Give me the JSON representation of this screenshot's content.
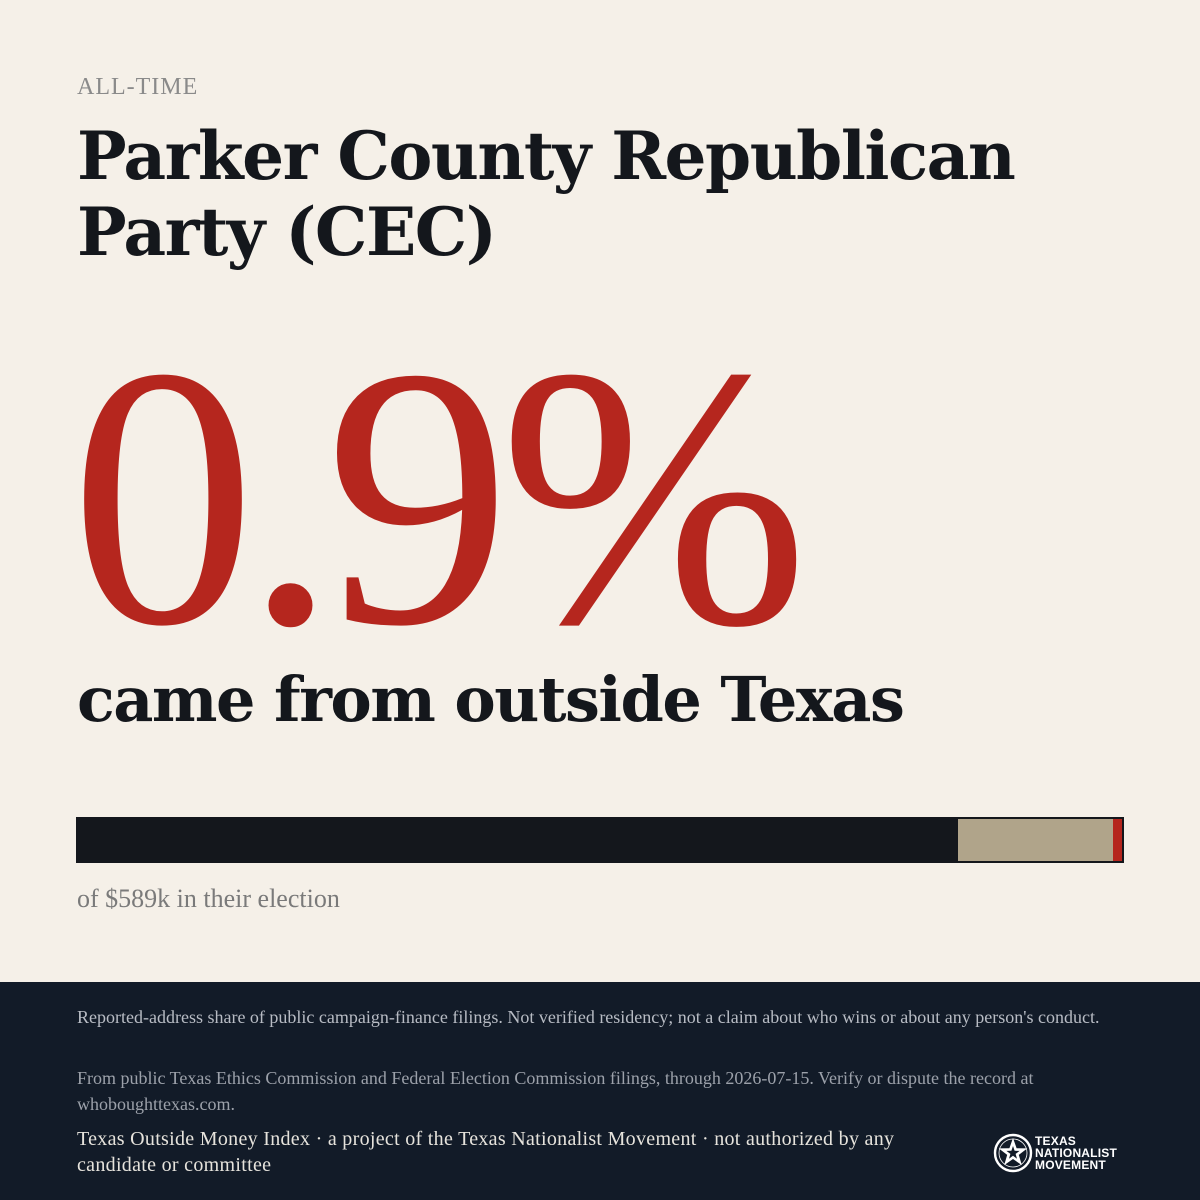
{
  "header": {
    "eyebrow": "ALL-TIME",
    "title": "Parker County Republican Party (CEC)"
  },
  "stat": {
    "percent": "0.9%",
    "subtitle": "came from outside Texas"
  },
  "bar": {
    "segments": [
      {
        "name": "seg-in-state",
        "fraction": 0.843,
        "color": "#14171c"
      },
      {
        "name": "seg-other",
        "fraction": 0.148,
        "color": "#b0a48a"
      },
      {
        "name": "seg-outside",
        "fraction": 0.009,
        "color": "#b5261e"
      }
    ],
    "caption": "of $589k in their election"
  },
  "footer": {
    "disclaimer": "Reported-address share of public campaign-finance filings. Not verified residency; not a claim about who wins or about any person's conduct.",
    "source": "From public Texas Ethics Commission and Federal Election Commission filings, through 2026-07-15. Verify or dispute the record at whoboughttexas.com.",
    "attribution": "Texas Outside Money Index · a project of the Texas Nationalist Movement · not authorized by any candidate or committee",
    "logo": {
      "icon": "star-seal-icon",
      "line1": "TEXAS",
      "line2": "NATIONALIST",
      "line3": "MOVEMENT"
    }
  },
  "colors": {
    "background": "#f5f0e8",
    "accent": "#b5261e",
    "ink": "#14171c",
    "footer": "#121b28"
  }
}
